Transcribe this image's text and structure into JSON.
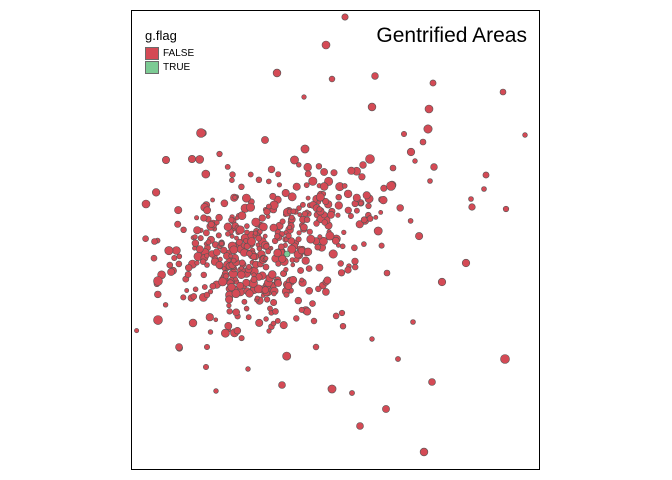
{
  "map": {
    "title": "Gentrified Areas",
    "legend": {
      "title": "g.flag",
      "items": [
        {
          "label": "FALSE",
          "color": "#d44a55"
        },
        {
          "label": "TRUE",
          "color": "#7ccb94"
        }
      ]
    },
    "stroke_color": "#555555"
  }
}
